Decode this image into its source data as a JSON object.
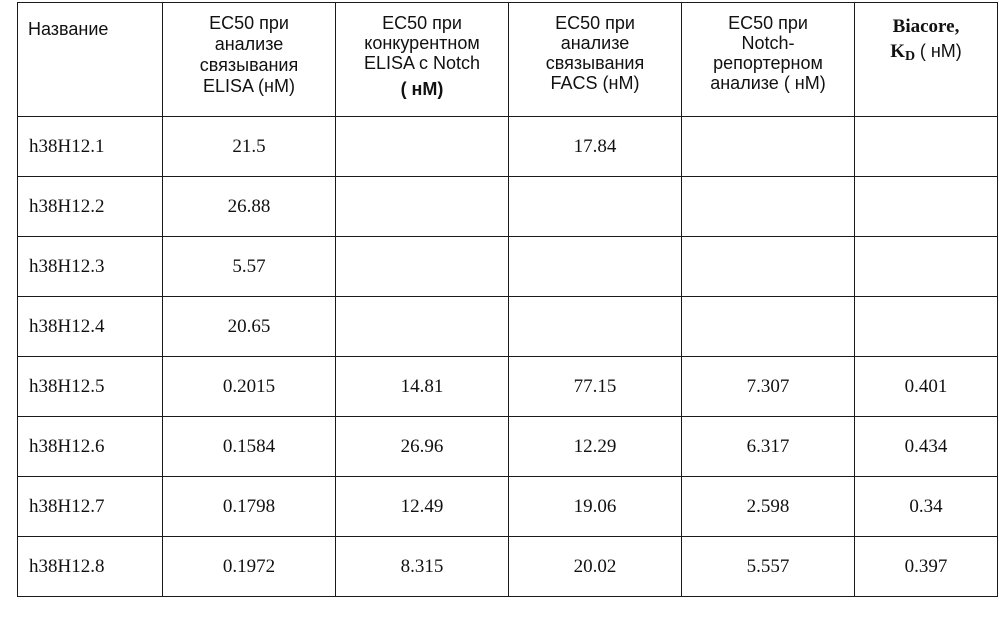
{
  "table": {
    "headers": {
      "name": "Название",
      "elisa": [
        "EC50 при",
        "анализе",
        "связывания",
        "ELISA  (нМ)"
      ],
      "competitive": [
        "EC50 при",
        "конкурентном",
        "ELISA с Notch"
      ],
      "competitive_unit": "( нМ)",
      "facs": [
        "EC50 при",
        "анализе",
        "связывания",
        "FACS  (нМ)"
      ],
      "notch": [
        "EC50 при",
        "Notch-",
        "репортерном",
        "анализе  ( нМ)"
      ],
      "biacore_title": "Biacore,",
      "biacore_k": "K",
      "biacore_sub": "D",
      "biacore_unit": "( нМ)"
    },
    "rows": [
      {
        "name": "h38H12.1",
        "elisa": "21.5",
        "competitive": "",
        "facs": "17.84",
        "notch": "",
        "biacore": ""
      },
      {
        "name": "h38H12.2",
        "elisa": "26.88",
        "competitive": "",
        "facs": "",
        "notch": "",
        "biacore": ""
      },
      {
        "name": "h38H12.3",
        "elisa": "5.57",
        "competitive": "",
        "facs": "",
        "notch": "",
        "biacore": ""
      },
      {
        "name": "h38H12.4",
        "elisa": "20.65",
        "competitive": "",
        "facs": "",
        "notch": "",
        "biacore": ""
      },
      {
        "name": "h38H12.5",
        "elisa": "0.2015",
        "competitive": "14.81",
        "facs": "77.15",
        "notch": "7.307",
        "biacore": "0.401"
      },
      {
        "name": "h38H12.6",
        "elisa": "0.1584",
        "competitive": "26.96",
        "facs": "12.29",
        "notch": "6.317",
        "biacore": "0.434"
      },
      {
        "name": "h38H12.7",
        "elisa": "0.1798",
        "competitive": "12.49",
        "facs": "19.06",
        "notch": "2.598",
        "biacore": "0.34"
      },
      {
        "name": "h38H12.8",
        "elisa": "0.1972",
        "competitive": "8.315",
        "facs": "20.02",
        "notch": "5.557",
        "biacore": "0.397"
      }
    ]
  }
}
